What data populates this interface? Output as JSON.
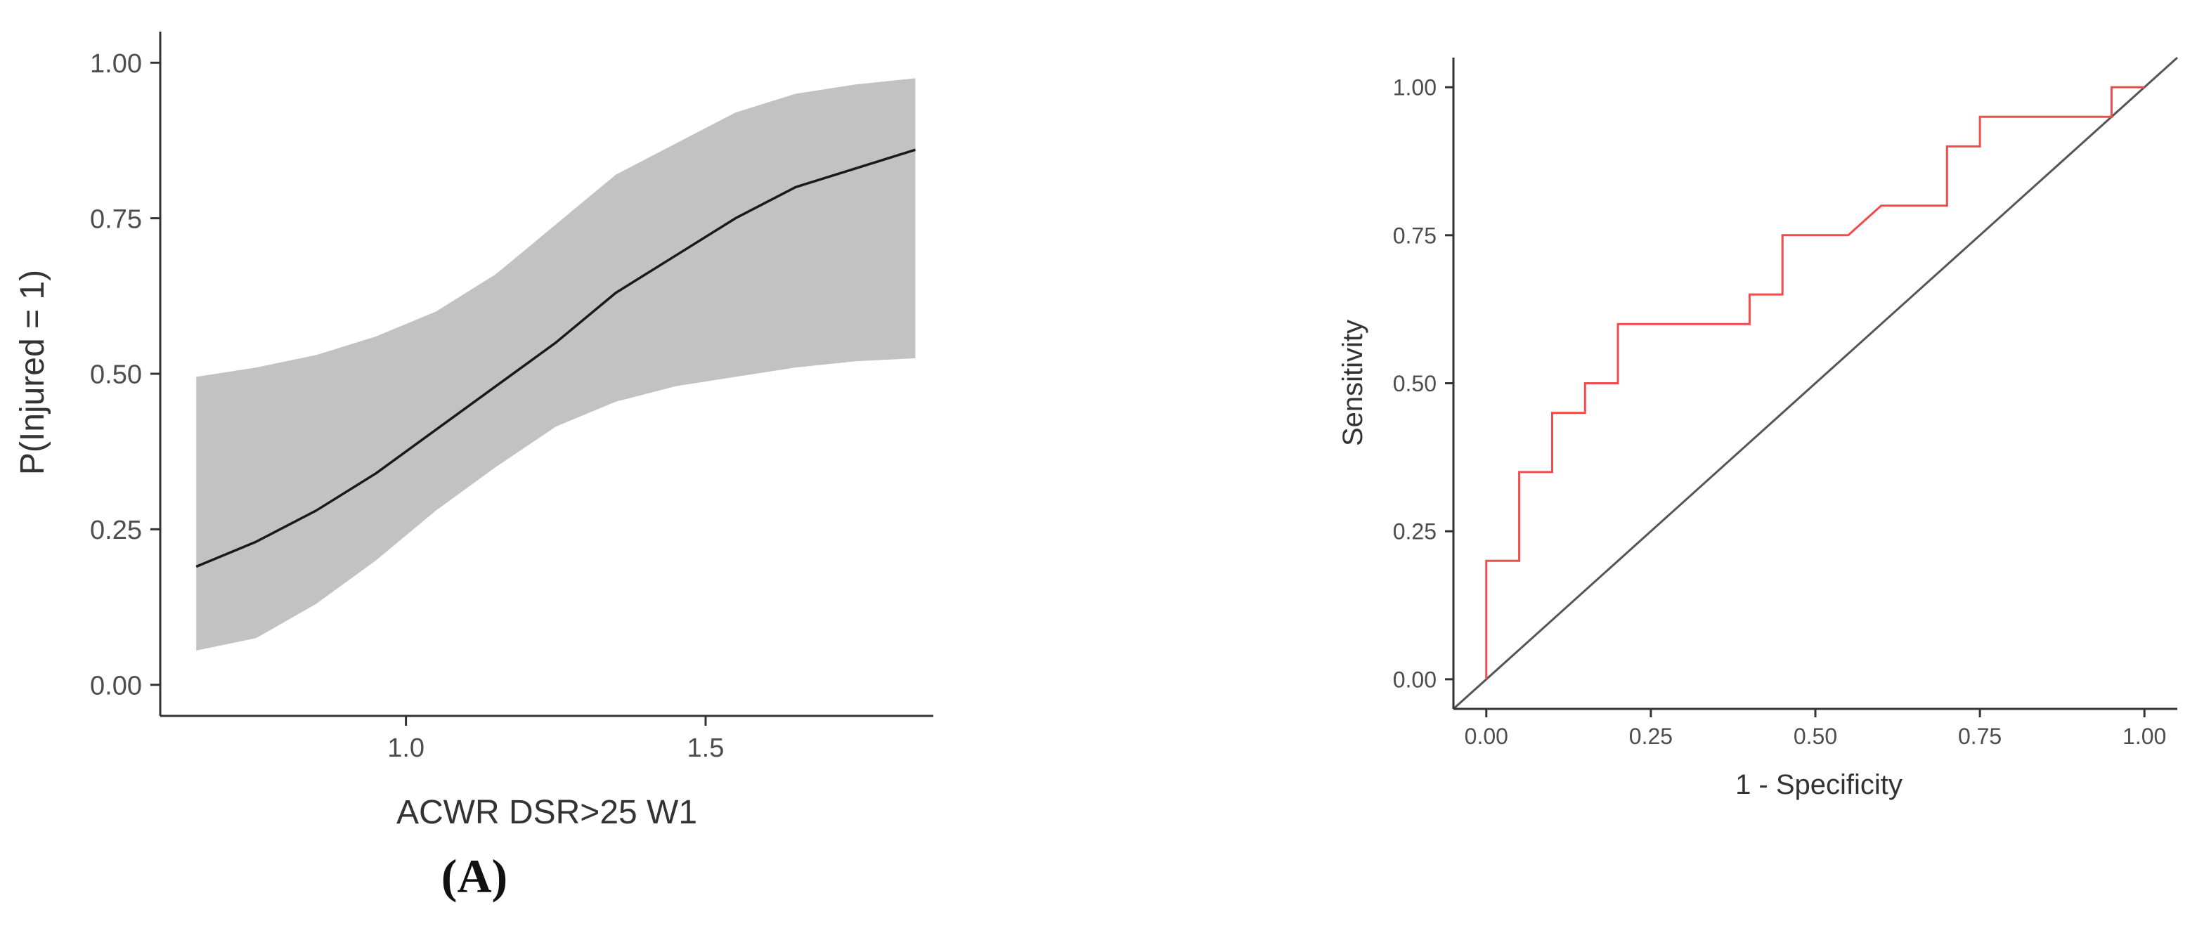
{
  "chart_data": [
    {
      "type": "line",
      "panel_label": "(A)",
      "xlabel": "ACWR DSR>25 W1",
      "ylabel": "P(Injured = 1)",
      "xlim": [
        0.59,
        1.88
      ],
      "ylim": [
        -0.05,
        1.05
      ],
      "x_ticks": [
        1.0,
        1.5
      ],
      "x_tick_labels": [
        "1.0",
        "1.5"
      ],
      "y_ticks": [
        0,
        0.25,
        0.5,
        0.75,
        1.0
      ],
      "y_tick_labels": [
        "0.00",
        "0.25",
        "0.50",
        "0.75",
        "1.00"
      ],
      "grid": false,
      "colors": {
        "line": "#1a1a1a",
        "band": "#c2c2c2",
        "axis": "#333333"
      },
      "series": [
        {
          "x": [
            0.65,
            0.75,
            0.85,
            0.95,
            1.05,
            1.15,
            1.25,
            1.35,
            1.45,
            1.55,
            1.65,
            1.75,
            1.85
          ],
          "values": [
            0.19,
            0.23,
            0.28,
            0.34,
            0.41,
            0.48,
            0.55,
            0.63,
            0.69,
            0.75,
            0.8,
            0.83,
            0.86
          ],
          "lower": [
            0.055,
            0.075,
            0.13,
            0.2,
            0.28,
            0.35,
            0.415,
            0.455,
            0.48,
            0.495,
            0.51,
            0.52,
            0.525
          ],
          "upper": [
            0.495,
            0.51,
            0.53,
            0.56,
            0.6,
            0.66,
            0.74,
            0.82,
            0.87,
            0.92,
            0.95,
            0.965,
            0.975
          ]
        }
      ]
    },
    {
      "type": "line",
      "xlabel": "1 - Specificity",
      "ylabel": "Sensitivity",
      "xlim": [
        -0.05,
        1.05
      ],
      "ylim": [
        -0.05,
        1.05
      ],
      "x_ticks": [
        0,
        0.25,
        0.5,
        0.75,
        1.0
      ],
      "x_tick_labels": [
        "0.00",
        "0.25",
        "0.50",
        "0.75",
        "1.00"
      ],
      "y_ticks": [
        0,
        0.25,
        0.5,
        0.75,
        1.0
      ],
      "y_tick_labels": [
        "0.00",
        "0.25",
        "0.50",
        "0.75",
        "1.00"
      ],
      "grid": false,
      "colors": {
        "roc": "#f24b4b",
        "reference": "#555555",
        "axis": "#333333"
      },
      "series": [
        {
          "x": [
            0,
            0,
            0.05,
            0.05,
            0.1,
            0.1,
            0.15,
            0.15,
            0.2,
            0.2,
            0.4,
            0.4,
            0.45,
            0.45,
            0.55,
            0.6,
            0.7,
            0.7,
            0.75,
            0.75,
            0.95,
            0.95,
            1.0
          ],
          "values": [
            0,
            0.2,
            0.2,
            0.35,
            0.35,
            0.45,
            0.45,
            0.5,
            0.5,
            0.6,
            0.6,
            0.65,
            0.65,
            0.75,
            0.75,
            0.8,
            0.8,
            0.9,
            0.9,
            0.95,
            0.95,
            1.0,
            1.0
          ]
        },
        {
          "x": [
            -0.05,
            1.05
          ],
          "values": [
            -0.05,
            1.05
          ]
        }
      ]
    }
  ]
}
